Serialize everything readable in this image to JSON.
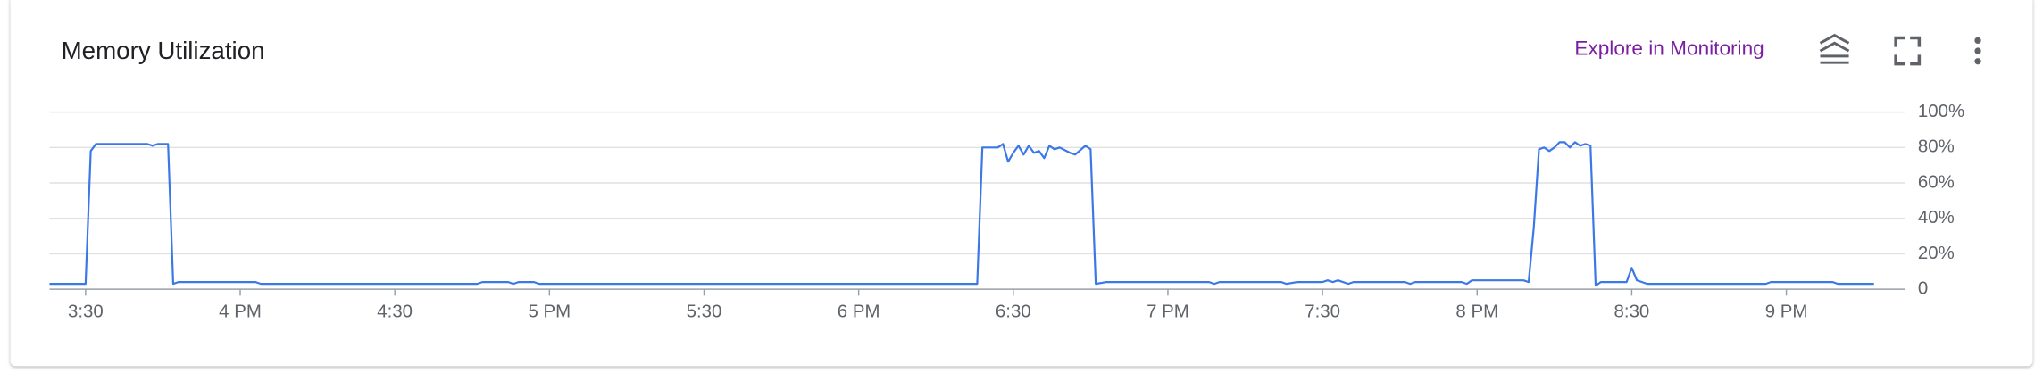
{
  "header": {
    "title": "Memory Utilization",
    "link": "Explore in Monitoring"
  },
  "chart_data": {
    "type": "line",
    "color": "#3b78e7",
    "grid": true,
    "x": [
      923,
      930,
      931,
      932,
      942,
      943,
      944,
      946,
      947,
      948,
      963,
      964,
      1006,
      1007,
      1012,
      1013,
      1014,
      1017,
      1018,
      1103,
      1104,
      1107,
      1108,
      1109,
      1110,
      1111,
      1112,
      1113,
      1114,
      1115,
      1116,
      1117,
      1118,
      1119,
      1121,
      1122,
      1124,
      1125,
      1126,
      1128,
      1148,
      1149,
      1150,
      1162,
      1163,
      1165,
      1170,
      1171,
      1172,
      1173,
      1174,
      1175,
      1176,
      1186,
      1187,
      1188,
      1197,
      1198,
      1199,
      1209,
      1210,
      1211,
      1212,
      1213,
      1214,
      1215,
      1216,
      1217,
      1218,
      1219,
      1220,
      1221,
      1222,
      1223,
      1224,
      1229,
      1230,
      1231,
      1232,
      1233,
      1256,
      1257,
      1269,
      1270,
      1277
    ],
    "values": [
      3,
      3,
      78,
      82,
      82,
      81,
      82,
      82,
      3,
      4,
      4,
      3,
      3,
      4,
      4,
      3,
      4,
      4,
      3,
      3,
      80,
      80,
      82,
      72,
      77,
      81,
      76,
      81,
      77,
      78,
      74,
      81,
      79,
      80,
      77,
      76,
      81,
      79,
      3,
      4,
      4,
      3,
      4,
      4,
      3,
      4,
      4,
      5,
      4,
      5,
      4,
      3,
      4,
      4,
      3,
      4,
      4,
      3,
      5,
      5,
      4,
      35,
      79,
      80,
      78,
      80,
      83,
      83,
      80,
      83,
      81,
      82,
      81,
      2,
      4,
      4,
      12,
      5,
      4,
      3,
      3,
      4,
      4,
      3,
      3
    ],
    "xlim": [
      923,
      1283
    ],
    "xticks": [
      {
        "value": 930,
        "label": "3:30"
      },
      {
        "value": 960,
        "label": "4 PM"
      },
      {
        "value": 990,
        "label": "4:30"
      },
      {
        "value": 1020,
        "label": "5 PM"
      },
      {
        "value": 1050,
        "label": "5:30"
      },
      {
        "value": 1080,
        "label": "6 PM"
      },
      {
        "value": 1110,
        "label": "6:30"
      },
      {
        "value": 1140,
        "label": "7 PM"
      },
      {
        "value": 1170,
        "label": "7:30"
      },
      {
        "value": 1200,
        "label": "8 PM"
      },
      {
        "value": 1230,
        "label": "8:30"
      },
      {
        "value": 1260,
        "label": "9 PM"
      }
    ],
    "ylim": [
      0,
      100
    ],
    "yticks": [
      0,
      {
        "value": 20,
        "label": "20%"
      },
      {
        "value": 40,
        "label": "40%"
      },
      {
        "value": 60,
        "label": "60%"
      },
      {
        "value": 80,
        "label": "80%"
      },
      {
        "value": 100,
        "label": "100%"
      }
    ]
  }
}
